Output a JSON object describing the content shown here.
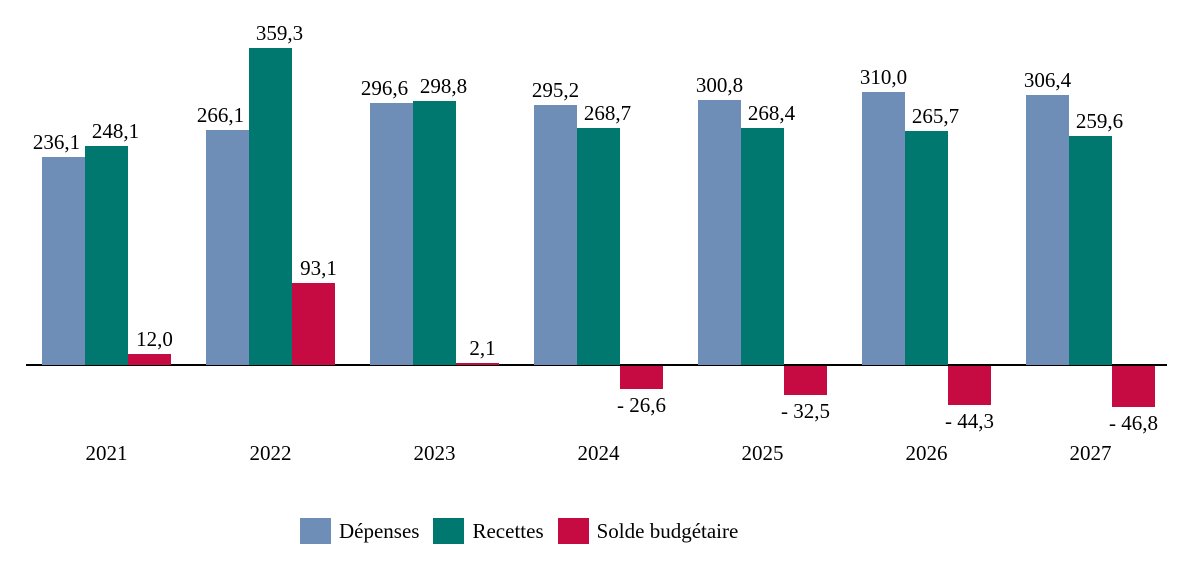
{
  "chart_data": {
    "type": "bar",
    "title": "",
    "xlabel": "",
    "ylabel": "",
    "categories": [
      "2021",
      "2022",
      "2023",
      "2024",
      "2025",
      "2026",
      "2027"
    ],
    "series": [
      {
        "name": "Dépenses",
        "color": "#6E8EB8",
        "values": [
          236.1,
          266.1,
          296.6,
          295.2,
          300.8,
          310.0,
          306.4
        ],
        "labels": [
          "236,1",
          "266,1",
          "296,6",
          "295,2",
          "300,8",
          "310,0",
          "306,4"
        ]
      },
      {
        "name": "Recettes",
        "color": "#007870",
        "values": [
          248.1,
          359.3,
          298.8,
          268.7,
          268.4,
          265.7,
          259.6
        ],
        "labels": [
          "248,1",
          "359,3",
          "298,8",
          "268,7",
          "268,4",
          "265,7",
          "259,6"
        ]
      },
      {
        "name": "Solde budgétaire",
        "color": "#C60B42",
        "values": [
          12.0,
          93.1,
          2.1,
          -26.6,
          -32.5,
          -44.3,
          -46.8
        ],
        "labels": [
          "12,0",
          "93,1",
          "2,1",
          "- 26,6",
          "- 32,5",
          "- 44,3",
          "- 46,8"
        ]
      }
    ],
    "ylim": [
      -60,
      400
    ],
    "grid": false,
    "legend_position": "bottom",
    "axis_color": "#000000",
    "text_color": "#000000",
    "decimal_separator": ","
  }
}
